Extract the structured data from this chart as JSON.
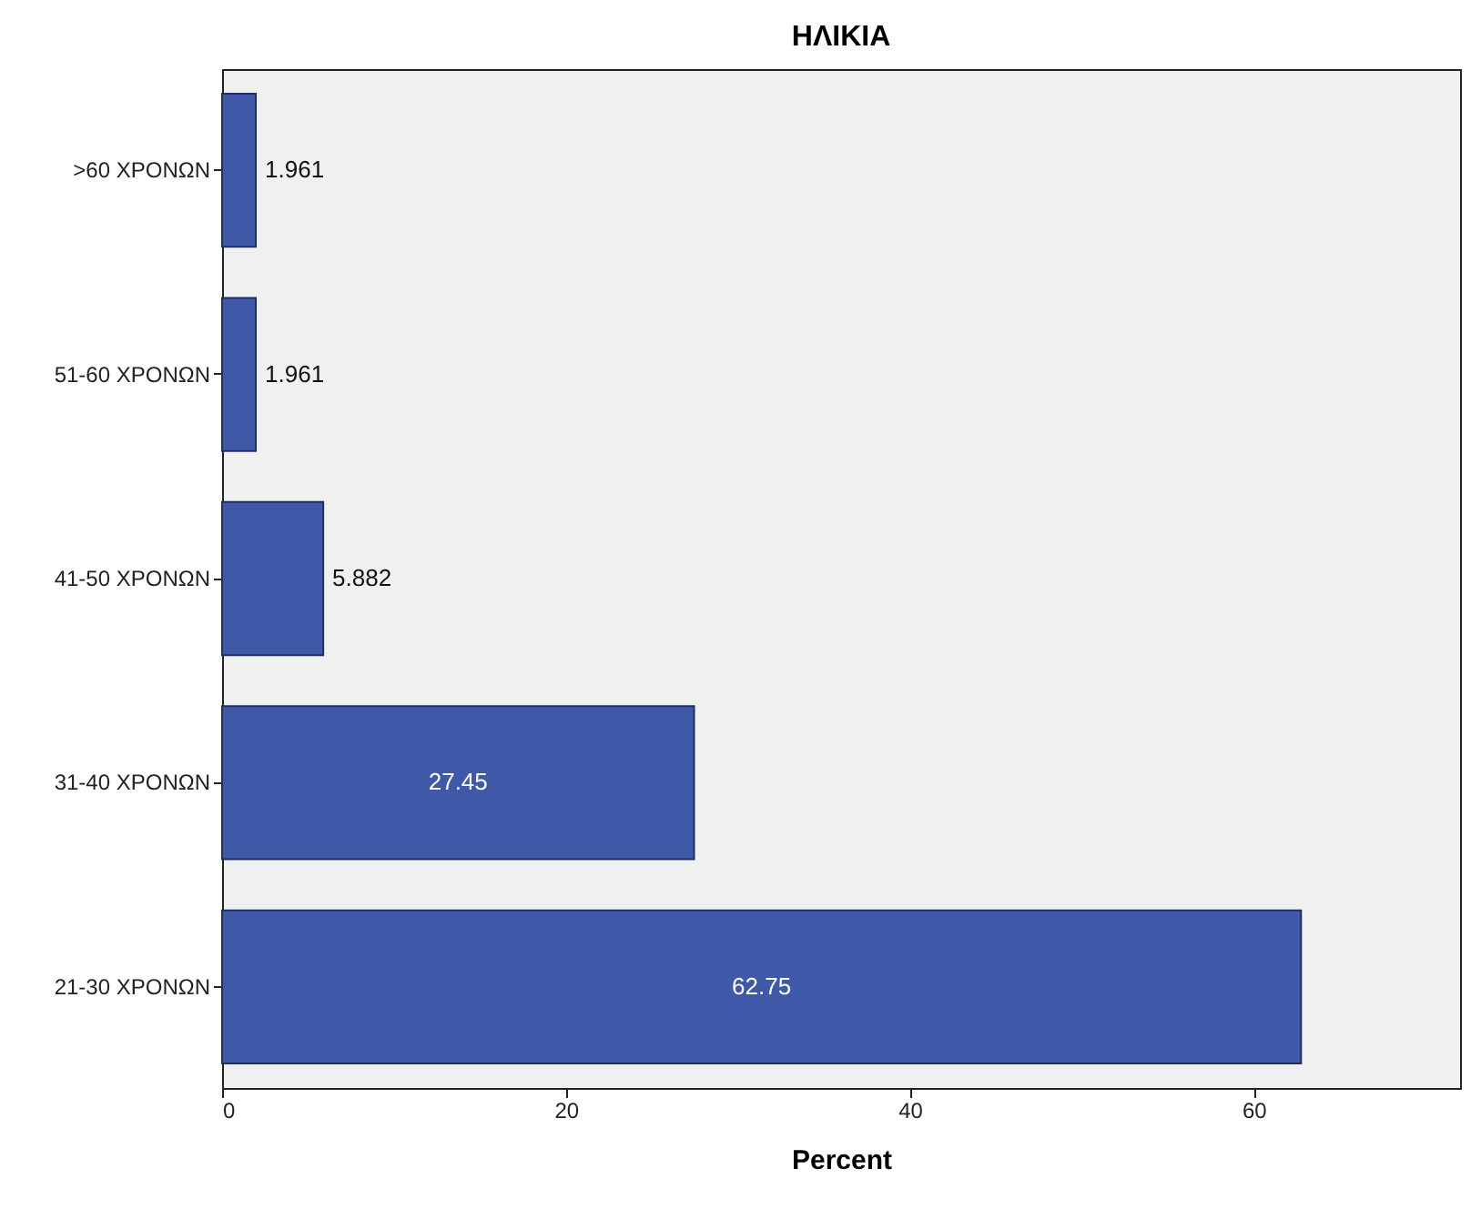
{
  "chart_data": {
    "type": "bar",
    "orientation": "horizontal",
    "title": "ΗΛΙΚΙΑ",
    "xlabel": "Percent",
    "categories": [
      ">60 ΧΡΟΝΩΝ",
      "51-60 ΧΡΟΝΩΝ",
      "41-50 ΧΡΟΝΩΝ",
      "31-40 ΧΡΟΝΩΝ",
      "21-30 ΧΡΟΝΩΝ"
    ],
    "values": [
      1.961,
      1.961,
      5.882,
      27.45,
      62.75
    ],
    "color": "#3f58a8",
    "xlim": [
      0,
      72
    ],
    "xticks": [
      0,
      20,
      40,
      60
    ],
    "data_labels": true
  }
}
